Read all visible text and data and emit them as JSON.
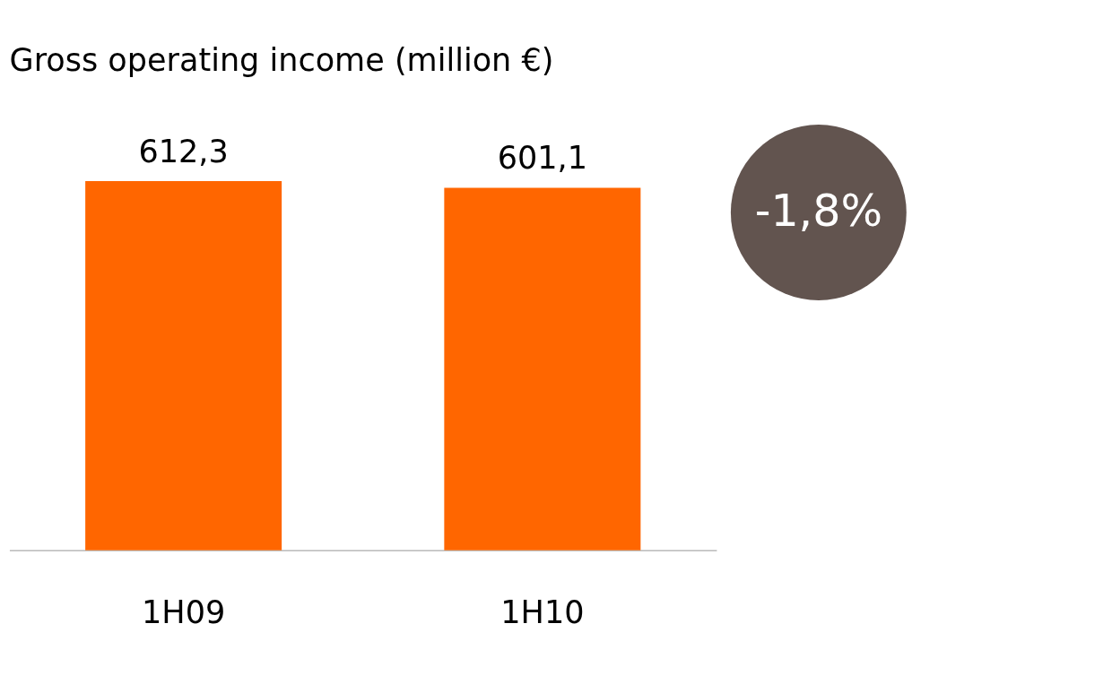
{
  "chart_data": {
    "type": "bar",
    "title": "Gross operating income (million €)",
    "categories": [
      "1H09",
      "1H10"
    ],
    "values": [
      612.3,
      601.1
    ],
    "color": "#ff6600",
    "value_labels": [
      "612,3",
      "601,1"
    ],
    "annotations": [
      "-1,8%"
    ]
  }
}
